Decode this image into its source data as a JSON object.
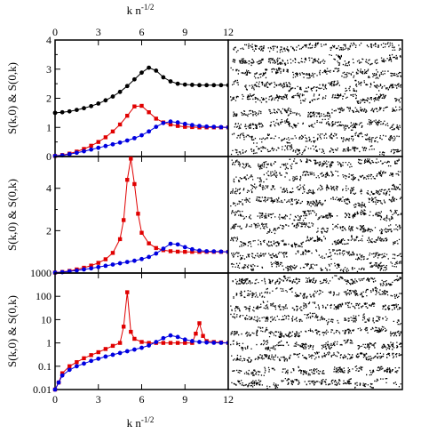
{
  "chart_data": [
    {
      "type": "line",
      "xlabel": "",
      "ylabel": "S(k,0) & S(0,k)",
      "xlim": [
        0,
        12
      ],
      "ylim": [
        0,
        4
      ],
      "xticks": [
        "0",
        "3",
        "6",
        "9",
        "12"
      ],
      "yticks": [
        "0",
        "1",
        "2",
        "3",
        "4"
      ],
      "scale": "linear",
      "grid": false,
      "series": [
        {
          "color": "#000000",
          "marker": "circle",
          "x": [
            0,
            0.5,
            1,
            1.5,
            2,
            2.5,
            3,
            3.5,
            4,
            4.5,
            5,
            5.5,
            6,
            6.5,
            7,
            7.5,
            8,
            8.5,
            9,
            9.5,
            10,
            10.5,
            11,
            11.5,
            12
          ],
          "y": [
            1.5,
            1.52,
            1.55,
            1.6,
            1.66,
            1.73,
            1.82,
            1.93,
            2.06,
            2.22,
            2.42,
            2.65,
            2.88,
            3.05,
            2.95,
            2.72,
            2.58,
            2.5,
            2.47,
            2.46,
            2.45,
            2.45,
            2.45,
            2.45,
            2.45
          ]
        },
        {
          "color": "#e00000",
          "marker": "square",
          "x": [
            0,
            0.5,
            1,
            1.5,
            2,
            2.5,
            3,
            3.5,
            4,
            4.5,
            5,
            5.5,
            6,
            6.5,
            7,
            7.5,
            8,
            8.5,
            9,
            9.5,
            10,
            10.5,
            11,
            11.5,
            12
          ],
          "y": [
            0.02,
            0.05,
            0.1,
            0.17,
            0.26,
            0.37,
            0.5,
            0.66,
            0.86,
            1.1,
            1.4,
            1.72,
            1.74,
            1.52,
            1.3,
            1.17,
            1.1,
            1.05,
            1.02,
            1.01,
            1.0,
            1.0,
            1.0,
            1.0,
            1.0
          ]
        },
        {
          "color": "#0000e0",
          "marker": "circle",
          "x": [
            0,
            0.5,
            1,
            1.5,
            2,
            2.5,
            3,
            3.5,
            4,
            4.5,
            5,
            5.5,
            6,
            6.5,
            7,
            7.5,
            8,
            8.5,
            9,
            9.5,
            10,
            10.5,
            11,
            11.5,
            12
          ],
          "y": [
            0.02,
            0.04,
            0.08,
            0.13,
            0.18,
            0.24,
            0.3,
            0.36,
            0.42,
            0.48,
            0.55,
            0.63,
            0.73,
            0.86,
            1.02,
            1.15,
            1.2,
            1.17,
            1.12,
            1.08,
            1.05,
            1.03,
            1.02,
            1.01,
            1.0
          ]
        }
      ]
    },
    {
      "type": "line",
      "xlabel": "",
      "ylabel": "S(k,0) & S(0,k)",
      "xlim": [
        0,
        12
      ],
      "ylim": [
        0,
        5.5
      ],
      "xticks": [],
      "yticks": [
        "2",
        "4"
      ],
      "scale": "linear",
      "grid": false,
      "series": [
        {
          "color": "#e00000",
          "marker": "square",
          "x": [
            0,
            0.5,
            1,
            1.5,
            2,
            2.5,
            3,
            3.5,
            4,
            4.5,
            4.75,
            5,
            5.25,
            5.5,
            5.75,
            6,
            6.5,
            7,
            7.5,
            8,
            8.5,
            9,
            9.5,
            10,
            10.5,
            11,
            11.5,
            12
          ],
          "y": [
            0.02,
            0.05,
            0.1,
            0.17,
            0.25,
            0.35,
            0.48,
            0.65,
            0.95,
            1.6,
            2.5,
            4.4,
            5.4,
            4.2,
            2.8,
            1.9,
            1.4,
            1.18,
            1.08,
            1.03,
            1.01,
            1.0,
            1.0,
            1.0,
            1.0,
            1.0,
            1.0,
            1.0
          ]
        },
        {
          "color": "#0000e0",
          "marker": "circle",
          "x": [
            0,
            0.5,
            1,
            1.5,
            2,
            2.5,
            3,
            3.5,
            4,
            4.5,
            5,
            5.5,
            6,
            6.5,
            7,
            7.5,
            8,
            8.5,
            9,
            9.5,
            10,
            10.5,
            11,
            11.5,
            12
          ],
          "y": [
            0.02,
            0.04,
            0.08,
            0.12,
            0.17,
            0.22,
            0.28,
            0.34,
            0.4,
            0.46,
            0.52,
            0.58,
            0.66,
            0.76,
            0.92,
            1.15,
            1.38,
            1.35,
            1.22,
            1.12,
            1.06,
            1.03,
            1.02,
            1.01,
            1.0
          ]
        }
      ]
    },
    {
      "type": "line",
      "xlabel": "k n",
      "xlabel_sup": "-1/2",
      "ylabel": "S(k,0) & S(0,k)",
      "xlim": [
        0,
        12
      ],
      "ylim": [
        0.01,
        1000
      ],
      "xticks": [
        "0",
        "3",
        "6",
        "9",
        "12"
      ],
      "yticks": [
        "0.01",
        "0.1",
        "1",
        "10",
        "100",
        "1000"
      ],
      "scale": "log",
      "grid": false,
      "series": [
        {
          "color": "#e00000",
          "marker": "square",
          "x": [
            0,
            0.25,
            0.5,
            1,
            1.5,
            2,
            2.5,
            3,
            3.5,
            4,
            4.5,
            4.75,
            5,
            5.25,
            5.5,
            6,
            6.5,
            7,
            7.5,
            8,
            8.5,
            9,
            9.5,
            9.75,
            10,
            10.25,
            10.5,
            11,
            11.5,
            12
          ],
          "y": [
            0.01,
            0.02,
            0.05,
            0.1,
            0.15,
            0.22,
            0.3,
            0.4,
            0.55,
            0.75,
            1.0,
            5,
            150,
            3,
            1.5,
            1.1,
            1.0,
            1.0,
            1.0,
            1.0,
            1.0,
            1.0,
            1.0,
            2.5,
            7,
            2.0,
            1.2,
            1.1,
            1.05,
            1.0
          ]
        },
        {
          "color": "#0000e0",
          "marker": "circle",
          "x": [
            0,
            0.25,
            0.5,
            1,
            1.5,
            2,
            2.5,
            3,
            3.5,
            4,
            4.5,
            5,
            5.5,
            6,
            6.5,
            7,
            7.5,
            8,
            8.5,
            9,
            9.5,
            10,
            10.5,
            11,
            11.5,
            12
          ],
          "y": [
            0.01,
            0.02,
            0.04,
            0.07,
            0.1,
            0.13,
            0.17,
            0.21,
            0.26,
            0.31,
            0.37,
            0.44,
            0.52,
            0.62,
            0.78,
            1.1,
            1.6,
            2.1,
            1.8,
            1.4,
            1.2,
            1.1,
            1.05,
            1.02,
            1.01,
            1.0
          ]
        }
      ]
    }
  ],
  "top_axis": {
    "label": "k n",
    "label_sup": "-1/2",
    "ticks": [
      "0",
      "3",
      "6",
      "9",
      "12"
    ]
  },
  "snapshots": {
    "panels": [
      "snapshot-top",
      "snapshot-middle",
      "snapshot-bottom"
    ],
    "point_color": "#000000"
  }
}
